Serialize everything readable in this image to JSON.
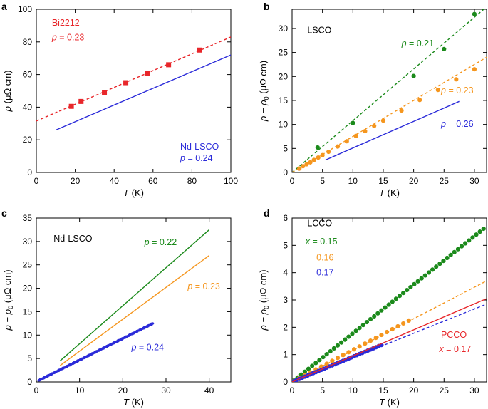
{
  "figure": {
    "colors": {
      "axis": "#000000",
      "red": "#e8262a",
      "blue": "#2b2bd9",
      "green": "#1b8a1b",
      "orange": "#f5961e"
    }
  },
  "chart_data": [
    {
      "panel": "a",
      "type": "scatter",
      "xlabel_var": "T",
      "xlabel_unit": " (K)",
      "ylabel_var": "ρ",
      "ylabel_unit": " (μΩ cm)",
      "xlim": [
        0,
        100
      ],
      "ylim": [
        0,
        100
      ],
      "xticks": [
        0,
        20,
        40,
        60,
        80,
        100
      ],
      "yticks": [
        0,
        20,
        40,
        60,
        80,
        100
      ],
      "series": [
        {
          "name": "Bi2212",
          "color": "red",
          "kind": "squares",
          "x": [
            18,
            23,
            35,
            46,
            57,
            68,
            84
          ],
          "y": [
            40.5,
            43.5,
            49,
            55,
            60.5,
            66,
            75
          ]
        },
        {
          "name": "Bi2212 fit",
          "color": "red",
          "kind": "dashed",
          "x": [
            0,
            100
          ],
          "y": [
            31.5,
            83
          ]
        },
        {
          "name": "Nd-LSCO",
          "color": "blue",
          "kind": "line",
          "x": [
            10,
            100
          ],
          "y": [
            26,
            72
          ]
        }
      ],
      "annotations": [
        {
          "text": "Bi2212",
          "color": "red",
          "pos": [
            8,
            90
          ]
        },
        {
          "var": "p",
          "value": " = 0.23",
          "color": "red",
          "pos": [
            8,
            81
          ]
        },
        {
          "text": "Nd-LSCO",
          "color": "blue",
          "pos": [
            74,
            14
          ]
        },
        {
          "var": "p",
          "value": " = 0.24",
          "color": "blue",
          "pos": [
            74,
            7
          ]
        }
      ]
    },
    {
      "panel": "b",
      "type": "scatter",
      "xlabel_var": "T",
      "xlabel_unit": " (K)",
      "ylabel_var": "ρ − ρ",
      "ylabel_sub": "0",
      "ylabel_unit": " (μΩ cm)",
      "xlim": [
        0,
        32
      ],
      "ylim": [
        0,
        34
      ],
      "xticks": [
        0,
        5,
        10,
        15,
        20,
        25,
        30
      ],
      "yticks": [
        0,
        5,
        10,
        15,
        20,
        25,
        30
      ],
      "series": [
        {
          "name": "p = 0.21",
          "color": "green",
          "kind": "dots",
          "x": [
            4.2,
            10,
            20,
            25,
            30
          ],
          "y": [
            5.2,
            10.3,
            20.1,
            25.7,
            33
          ]
        },
        {
          "name": "p = 0.21 fit",
          "color": "green",
          "kind": "dashed",
          "x": [
            0,
            32
          ],
          "y": [
            0,
            34.5
          ]
        },
        {
          "name": "p = 0.23",
          "color": "orange",
          "kind": "dots",
          "x": [
            1.2,
            1.8,
            2.4,
            3,
            3.6,
            4.3,
            5,
            6,
            7.5,
            9,
            10.5,
            12,
            13.5,
            15,
            18,
            21,
            24,
            27,
            30
          ],
          "y": [
            0.8,
            1.3,
            1.7,
            2.1,
            2.6,
            3.1,
            3.6,
            4.3,
            5.4,
            6.5,
            7.6,
            8.6,
            9.7,
            10.8,
            12.9,
            15.1,
            17.2,
            19.4,
            21.5
          ]
        },
        {
          "name": "p = 0.23 fit",
          "color": "orange",
          "kind": "dashed",
          "x": [
            0,
            32
          ],
          "y": [
            0,
            24
          ]
        },
        {
          "name": "p = 0.26",
          "color": "blue",
          "kind": "line",
          "x": [
            5.5,
            27.5
          ],
          "y": [
            2.6,
            14.8
          ]
        }
      ],
      "annotations": [
        {
          "text": "LSCO",
          "color": "axis",
          "pos": [
            2.5,
            29
          ]
        },
        {
          "var": "p",
          "value": " = 0.21",
          "color": "green",
          "pos": [
            18,
            26.3
          ]
        },
        {
          "var": "p",
          "value": " = 0.23",
          "color": "orange",
          "pos": [
            24.5,
            16.5
          ]
        },
        {
          "var": "p",
          "value": " = 0.26",
          "color": "blue",
          "pos": [
            24.5,
            9.5
          ]
        }
      ]
    },
    {
      "panel": "c",
      "type": "line",
      "xlabel_var": "T",
      "xlabel_unit": " (K)",
      "ylabel_var": "ρ − ρ",
      "ylabel_sub": "0",
      "ylabel_unit": " (μΩ cm)",
      "xlim": [
        0,
        45
      ],
      "ylim": [
        0,
        35
      ],
      "xticks": [
        0,
        10,
        20,
        30,
        40
      ],
      "yticks": [
        0,
        5,
        10,
        15,
        20,
        25,
        30,
        35
      ],
      "series": [
        {
          "name": "p = 0.22",
          "color": "green",
          "kind": "line",
          "x": [
            5.5,
            40
          ],
          "y": [
            4.5,
            32.5
          ]
        },
        {
          "name": "p = 0.23",
          "color": "orange",
          "kind": "line",
          "x": [
            5.5,
            40
          ],
          "y": [
            3.5,
            27
          ]
        },
        {
          "name": "p = 0.24",
          "color": "blue",
          "kind": "dense",
          "x": [
            0.5,
            27
          ],
          "y": [
            0.3,
            12.5
          ]
        }
      ],
      "annotations": [
        {
          "text": "Nd-LSCO",
          "color": "axis",
          "pos": [
            4,
            30
          ]
        },
        {
          "var": "p",
          "value": " = 0.22",
          "color": "green",
          "pos": [
            25,
            29.2
          ]
        },
        {
          "var": "p",
          "value": " = 0.23",
          "color": "orange",
          "pos": [
            35,
            19.8
          ]
        },
        {
          "var": "p",
          "value": " = 0.24",
          "color": "blue",
          "pos": [
            22,
            6.8
          ]
        }
      ]
    },
    {
      "panel": "d",
      "type": "scatter",
      "xlabel_var": "T",
      "xlabel_unit": " (K)",
      "ylabel_var": "ρ − ρ",
      "ylabel_sub": "0",
      "ylabel_unit": " (μΩ cm)",
      "xlim": [
        0,
        32
      ],
      "ylim": [
        0,
        6
      ],
      "xticks": [
        0,
        5,
        10,
        15,
        20,
        25,
        30
      ],
      "yticks": [
        0,
        1,
        2,
        3,
        4,
        5,
        6
      ],
      "series": [
        {
          "name": "x = 0.15",
          "color": "green",
          "kind": "dots",
          "x_from": 0.3,
          "x_to": 32,
          "step": 0.6,
          "slope": 0.178
        },
        {
          "name": "x = 0.16",
          "color": "orange",
          "kind": "dots",
          "x_from": 0.3,
          "x_to": 20,
          "step": 0.9,
          "slope": 0.117
        },
        {
          "name": "x = 0.16 fit",
          "color": "orange",
          "kind": "dashed",
          "x": [
            0,
            32
          ],
          "y": [
            0,
            3.7
          ]
        },
        {
          "name": "x = 0.17",
          "color": "blue",
          "kind": "dots",
          "x_from": 0.3,
          "x_to": 15,
          "step": 0.45,
          "slope": 0.092
        },
        {
          "name": "x = 0.17 fit",
          "color": "blue",
          "kind": "dashed",
          "x": [
            0,
            32
          ],
          "y": [
            0,
            2.85
          ]
        },
        {
          "name": "PCCO",
          "color": "red",
          "kind": "line",
          "x": [
            0,
            32
          ],
          "y": [
            0,
            3.05
          ]
        }
      ],
      "annotations": [
        {
          "text": "LCCO",
          "color": "axis",
          "pos": [
            2.5,
            5.7
          ]
        },
        {
          "var": "x",
          "value": " = 0.15",
          "color": "green",
          "pos": [
            2.2,
            5.03
          ]
        },
        {
          "text": "0.16",
          "color": "orange",
          "pos": [
            4.0,
            4.45
          ]
        },
        {
          "text": "0.17",
          "color": "blue",
          "pos": [
            4.0,
            3.9
          ]
        },
        {
          "text": "PCCO",
          "color": "red",
          "pos": [
            24.5,
            1.62
          ]
        },
        {
          "var": "x",
          "value": " = 0.17",
          "color": "red",
          "pos": [
            24.2,
            1.1
          ]
        }
      ]
    }
  ],
  "panel_labels": [
    "a",
    "b",
    "c",
    "d"
  ]
}
